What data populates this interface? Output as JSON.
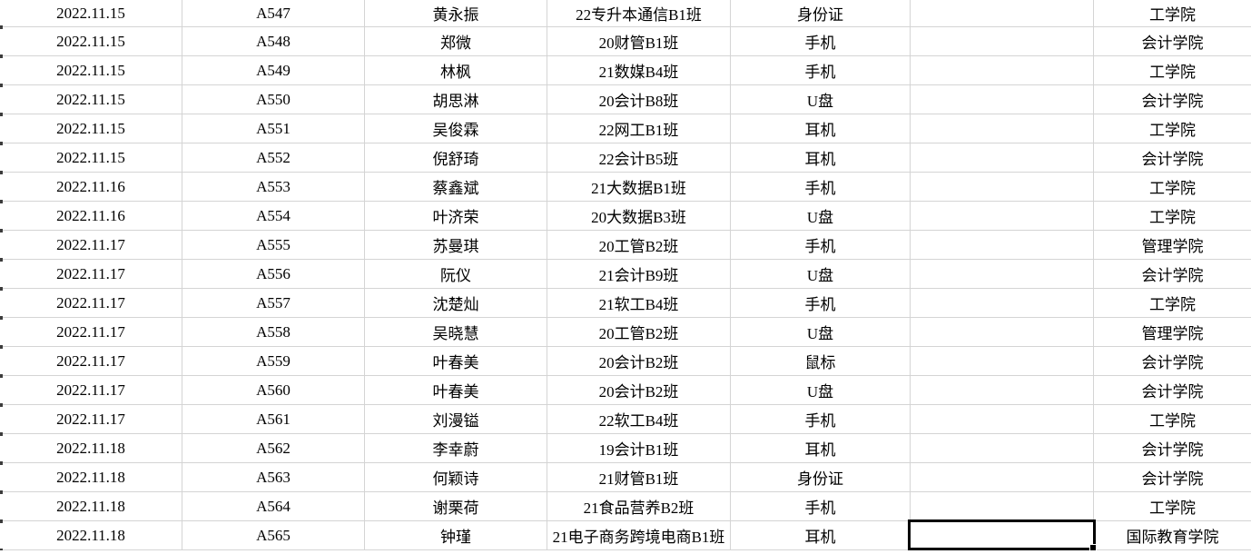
{
  "grid": {
    "background": "#ffffff",
    "gridline_color": "#d4d4d4",
    "text_color": "#000000",
    "selection": {
      "row_index": 18,
      "col_index": 5,
      "border_color": "#000000",
      "value": ""
    }
  },
  "columns": [
    "date",
    "code",
    "name",
    "class_name",
    "item",
    "note",
    "college"
  ],
  "rows": [
    {
      "date": "2022.11.15",
      "code": "A547",
      "name": "黄永振",
      "class_name": "22专升本通信B1班",
      "item": "身份证",
      "note": "",
      "college": "工学院"
    },
    {
      "date": "2022.11.15",
      "code": "A548",
      "name": "郑微",
      "class_name": "20财管B1班",
      "item": "手机",
      "note": "",
      "college": "会计学院"
    },
    {
      "date": "2022.11.15",
      "code": "A549",
      "name": "林枫",
      "class_name": "21数媒B4班",
      "item": "手机",
      "note": "",
      "college": "工学院"
    },
    {
      "date": "2022.11.15",
      "code": "A550",
      "name": "胡思淋",
      "class_name": "20会计B8班",
      "item": "U盘",
      "note": "",
      "college": "会计学院"
    },
    {
      "date": "2022.11.15",
      "code": "A551",
      "name": "吴俊霖",
      "class_name": "22网工B1班",
      "item": "耳机",
      "note": "",
      "college": "工学院"
    },
    {
      "date": "2022.11.15",
      "code": "A552",
      "name": "倪舒琦",
      "class_name": "22会计B5班",
      "item": "耳机",
      "note": "",
      "college": "会计学院"
    },
    {
      "date": "2022.11.16",
      "code": "A553",
      "name": "蔡鑫斌",
      "class_name": "21大数据B1班",
      "item": "手机",
      "note": "",
      "college": "工学院"
    },
    {
      "date": "2022.11.16",
      "code": "A554",
      "name": "叶济荣",
      "class_name": "20大数据B3班",
      "item": "U盘",
      "note": "",
      "college": "工学院"
    },
    {
      "date": "2022.11.17",
      "code": "A555",
      "name": "苏曼琪",
      "class_name": "20工管B2班",
      "item": "手机",
      "note": "",
      "college": "管理学院"
    },
    {
      "date": "2022.11.17",
      "code": "A556",
      "name": "阮仪",
      "class_name": "21会计B9班",
      "item": "U盘",
      "note": "",
      "college": "会计学院"
    },
    {
      "date": "2022.11.17",
      "code": "A557",
      "name": "沈楚灿",
      "class_name": "21软工B4班",
      "item": "手机",
      "note": "",
      "college": "工学院"
    },
    {
      "date": "2022.11.17",
      "code": "A558",
      "name": "吴晓慧",
      "class_name": "20工管B2班",
      "item": "U盘",
      "note": "",
      "college": "管理学院"
    },
    {
      "date": "2022.11.17",
      "code": "A559",
      "name": "叶春美",
      "class_name": "20会计B2班",
      "item": "鼠标",
      "note": "",
      "college": "会计学院"
    },
    {
      "date": "2022.11.17",
      "code": "A560",
      "name": "叶春美",
      "class_name": "20会计B2班",
      "item": "U盘",
      "note": "",
      "college": "会计学院"
    },
    {
      "date": "2022.11.17",
      "code": "A561",
      "name": "刘漫镒",
      "class_name": "22软工B4班",
      "item": "手机",
      "note": "",
      "college": "工学院"
    },
    {
      "date": "2022.11.18",
      "code": "A562",
      "name": "李幸蔚",
      "class_name": "19会计B1班",
      "item": "耳机",
      "note": "",
      "college": "会计学院"
    },
    {
      "date": "2022.11.18",
      "code": "A563",
      "name": "何颖诗",
      "class_name": "21财管B1班",
      "item": "身份证",
      "note": "",
      "college": "会计学院"
    },
    {
      "date": "2022.11.18",
      "code": "A564",
      "name": "谢栗荷",
      "class_name": "21食品营养B2班",
      "item": "手机",
      "note": "",
      "college": "工学院"
    },
    {
      "date": "2022.11.18",
      "code": "A565",
      "name": "钟瑾",
      "class_name": "21电子商务跨境电商B1班",
      "item": "耳机",
      "note": "",
      "college": "国际教育学院"
    }
  ]
}
